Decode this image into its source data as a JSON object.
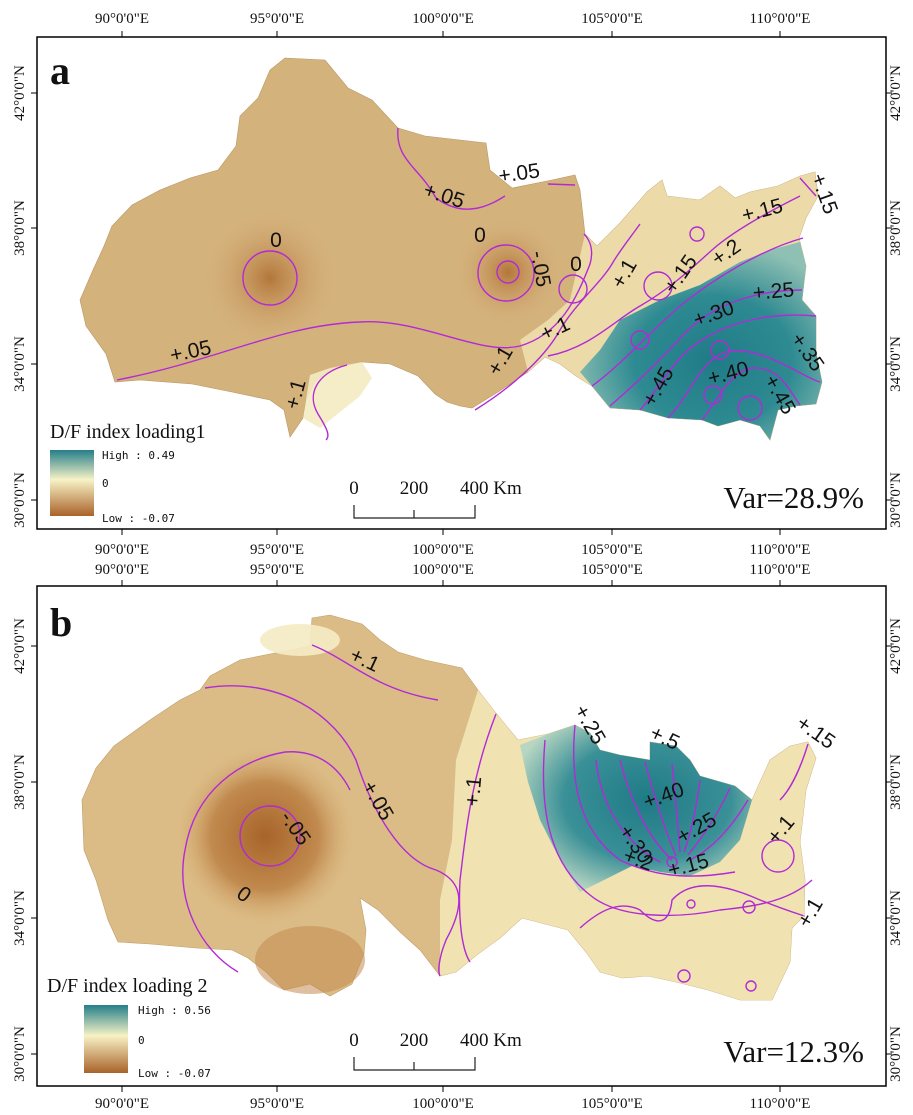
{
  "panels": [
    {
      "letter": "a",
      "legend_title": "D/F index loading1",
      "legend_high": "High : 0.49",
      "legend_mid": "0",
      "legend_low": "Low : -0.07",
      "scale_labels": [
        "0",
        "200",
        "400 Km"
      ],
      "var_text": "Var=28.9%",
      "contour_labels": [
        "0",
        "0",
        "-.05",
        "0",
        "+.05",
        "+.05",
        "+.05",
        "+.1",
        "+.1",
        "+.1",
        "+.1",
        "+.15",
        "+.15",
        "+.15",
        "+.2",
        "+.25",
        "+.30",
        "+.35",
        "+.40",
        "+.45",
        "+.45"
      ]
    },
    {
      "letter": "b",
      "legend_title": "D/F index loading 2",
      "legend_high": "High : 0.56",
      "legend_mid": "0",
      "legend_low": "Low : -0.07",
      "scale_labels": [
        "0",
        "200",
        "400 Km"
      ],
      "var_text": "Var=12.3%",
      "contour_labels": [
        "+.1",
        "-.05",
        "+.05",
        "0",
        "+.1",
        "+.25",
        "+.5",
        "+.40",
        "+.30",
        "+.25",
        "+.2",
        "+.15",
        "+.1",
        "+.15",
        "+.1"
      ]
    }
  ],
  "axis_labels": {
    "longitude": [
      "90°0'0\"E",
      "95°0'0\"E",
      "100°0'0\"E",
      "105°0'0\"E",
      "110°0'0\"E"
    ],
    "latitude": [
      "42°0'0\"N",
      "38°0'0\"N",
      "34°0'0\"N",
      "30°0'0\"N"
    ]
  },
  "colors": {
    "high": "#257f8a",
    "mid": "#f7f2c6",
    "low": "#a9632a",
    "contour": "#b12ad6",
    "frame": "#000000"
  }
}
